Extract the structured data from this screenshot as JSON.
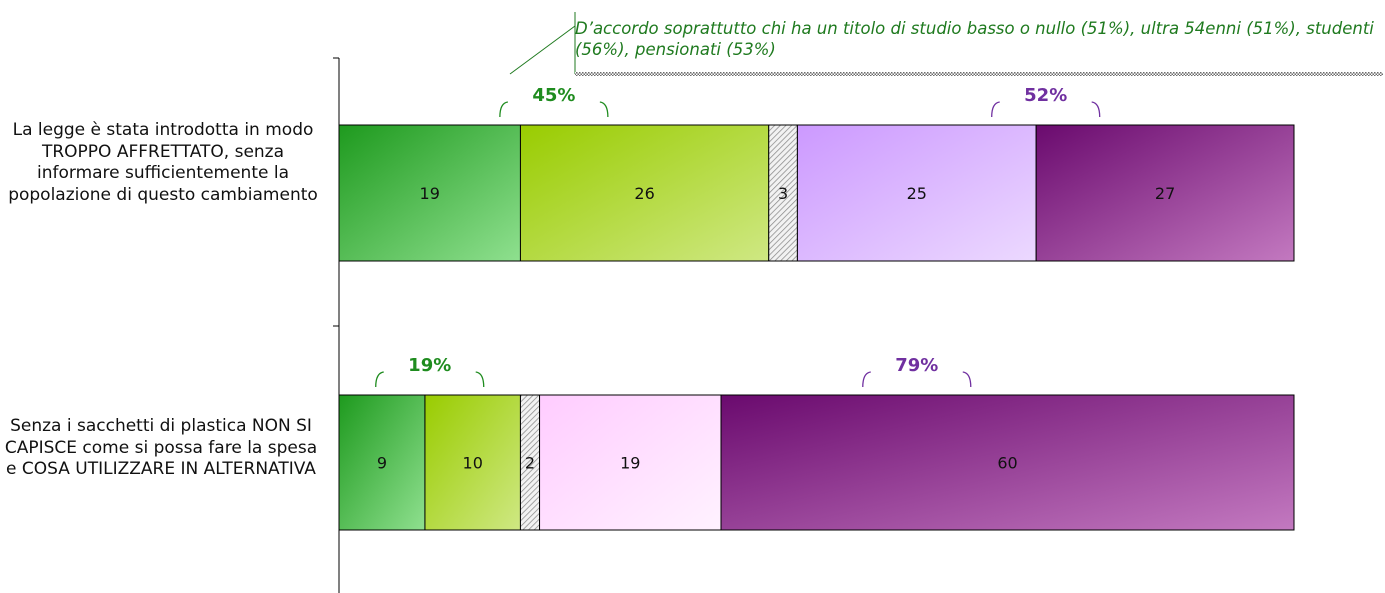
{
  "chart_data": {
    "type": "bar",
    "orientation": "horizontal",
    "stacked": true,
    "categories": [
      "La legge è stata introdotta in modo TROPPO AFFRETTATO, senza informare sufficientemente la popolazione di questo cambiamento",
      "Senza i sacchetti di plastica NON SI CAPISCE come si possa fare la spesa e COSA UTILIZZARE IN ALTERNATIVA"
    ],
    "segments": [
      [
        {
          "value": 19,
          "label": "19",
          "fill": "green-dark"
        },
        {
          "value": 26,
          "label": "26",
          "fill": "green-light"
        },
        {
          "value": 3,
          "label": "3",
          "fill": "hatch"
        },
        {
          "value": 25,
          "label": "25",
          "fill": "purple-light"
        },
        {
          "value": 27,
          "label": "27",
          "fill": "purple-dark"
        }
      ],
      [
        {
          "value": 9,
          "label": "9",
          "fill": "green-dark"
        },
        {
          "value": 10,
          "label": "10",
          "fill": "green-light"
        },
        {
          "value": 2,
          "label": "2",
          "fill": "hatch"
        },
        {
          "value": 19,
          "label": "19",
          "fill": "pink-light"
        },
        {
          "value": 60,
          "label": "60",
          "fill": "purple-dark"
        }
      ]
    ],
    "summaries": [
      [
        {
          "text": "45%",
          "from": 0,
          "to": 45,
          "color": "#1f8c1f"
        },
        {
          "text": "52%",
          "from": 48,
          "to": 100,
          "color": "#7030a0"
        }
      ],
      [
        {
          "text": "19%",
          "from": 0,
          "to": 19,
          "color": "#1f8c1f"
        },
        {
          "text": "79%",
          "from": 21,
          "to": 100,
          "color": "#7030a0"
        }
      ]
    ],
    "annotation": "D’accordo soprattutto chi ha un titolo di studio basso o nullo (51%), ultra 54enni (51%), studenti (56%), pensionati (53%)",
    "xlim": [
      0,
      100
    ],
    "legend": "none",
    "grid": false
  },
  "colors": {
    "green_dark": "#1e9a1e",
    "green_light": "#99cc00",
    "purple_light": "#cc99ff",
    "pink_light": "#ffccff",
    "purple_dark": "#7a1a7a",
    "green_text": "#1f8c1f",
    "purple_text": "#7030a0"
  }
}
